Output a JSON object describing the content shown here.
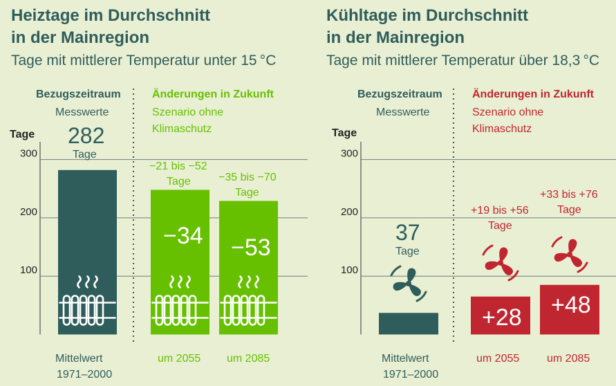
{
  "left": {
    "title_line1": "Heiztage im Durchschnitt",
    "title_line2": "in der Mainregion",
    "subtitle": "Tage mit mittlerer Temperatur unter 15 °C",
    "ref_header": "Bezugszeitraum",
    "ref_sub": "Messwerte",
    "future_header": "Änderungen in Zukunft",
    "future_sub1": "Szenario ohne",
    "future_sub2": "Klimaschutz",
    "ylabel": "Tage",
    "ref_value": "282",
    "ref_unit": "Tage",
    "range_2055": "−21 bis −52",
    "range_2055_unit": "Tage",
    "range_2085": "−35 bis −70",
    "range_2085_unit": "Tage",
    "delta_2055": "−34",
    "delta_2085": "−53",
    "xlabel_ref1": "Mittelwert",
    "xlabel_ref2": "1971–2000",
    "xlabel_2055": "um 2055",
    "xlabel_2085": "um 2085",
    "icon": "radiator-icon"
  },
  "right": {
    "title_line1": "Kühltage im Durchschnitt",
    "title_line2": "in der Mainregion",
    "subtitle": "Tage mit mittlerer Temperatur über 18,3 °C",
    "ref_header": "Bezugszeitraum",
    "ref_sub": "Messwerte",
    "future_header": "Änderungen in Zukunft",
    "future_sub1": "Szenario ohne",
    "future_sub2": "Klimaschutz",
    "ylabel": "Tage",
    "ref_value": "37",
    "ref_unit": "Tage",
    "range_2055": "+19 bis +56",
    "range_2055_unit": "Tage",
    "range_2085": "+33 bis +76",
    "range_2085_unit": "Tage",
    "delta_2055": "+28",
    "delta_2085": "+48",
    "xlabel_ref1": "Mittelwert",
    "xlabel_ref2": "1971–2000",
    "xlabel_2055": "um 2055",
    "xlabel_2085": "um 2085",
    "icon": "fan-icon"
  },
  "colors": {
    "background": "#e9efd3",
    "teal": "#2f5d5b",
    "green": "#66c000",
    "red": "#c0262f"
  },
  "chart_data": [
    {
      "type": "bar",
      "title": "Heiztage im Durchschnitt in der Mainregion",
      "subtitle": "Tage mit mittlerer Temperatur unter 15 °C",
      "ylabel": "Tage",
      "categories": [
        "Mittelwert 1971–2000",
        "um 2055",
        "um 2085"
      ],
      "values": [
        282,
        248,
        229
      ],
      "changes": [
        null,
        -34,
        -53
      ],
      "yticks": [
        100,
        200,
        300
      ],
      "ylim": [
        0,
        300
      ]
    },
    {
      "type": "bar",
      "title": "Kühltage im Durchschnitt in der Mainregion",
      "subtitle": "Tage mit mittlerer Temperatur über 18,3 °C",
      "ylabel": "Tage",
      "categories": [
        "Mittelwert 1971–2000",
        "um 2055",
        "um 2085"
      ],
      "values": [
        37,
        65,
        85
      ],
      "changes": [
        null,
        28,
        48
      ],
      "yticks": [
        100,
        200,
        300
      ],
      "ylim": [
        0,
        300
      ]
    }
  ]
}
